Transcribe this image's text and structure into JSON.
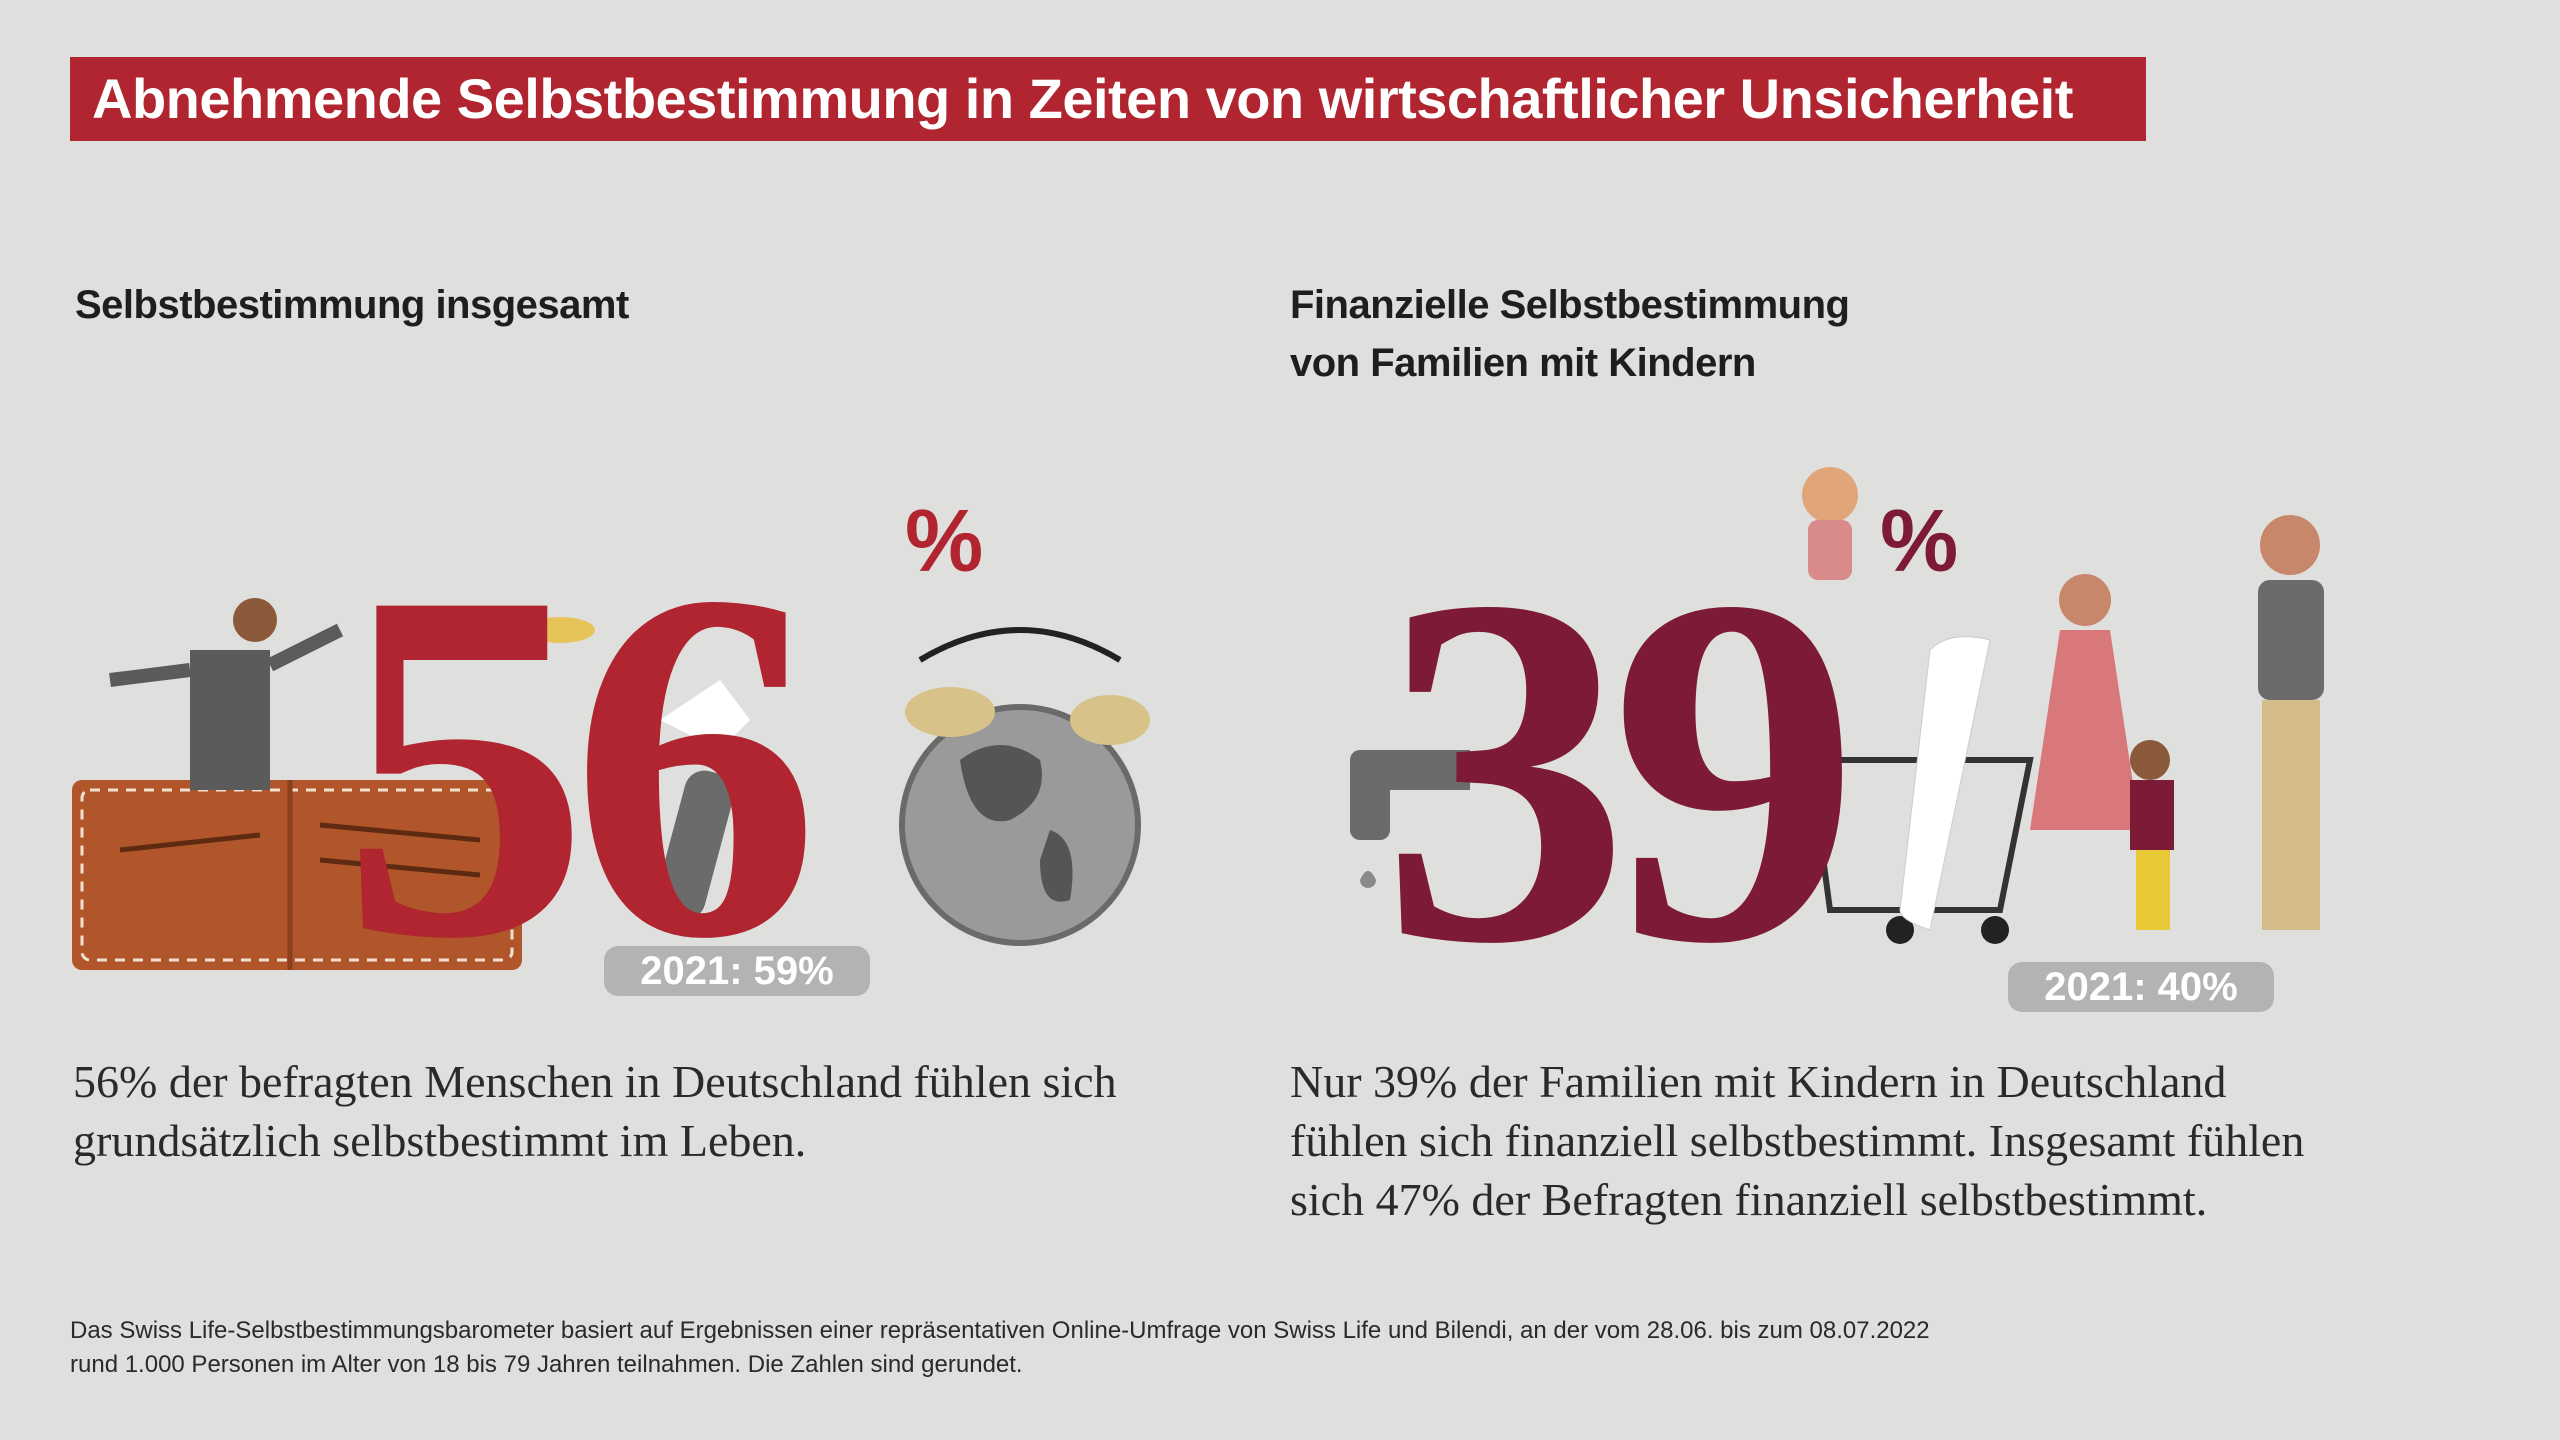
{
  "title": "Abnehmende Selbstbestimmung in Zeiten von wirtschaftlicher Unsicherheit",
  "left": {
    "heading": "Selbstbestimmung insgesamt",
    "big_number": "56",
    "percent_sign": "%",
    "previous": "2021: 59%",
    "body_line1": "56% der befragten Menschen in Deutschland fühlen sich",
    "body_line2": "grundsätzlich selbstbestimmt im Leben.",
    "color": "#b0252f"
  },
  "right": {
    "heading_line1": "Finanzielle Selbstbestimmung",
    "heading_line2": "von Familien mit Kindern",
    "big_number": "39",
    "percent_sign": "%",
    "previous": "2021: 40%",
    "body_line1": "Nur 39% der Familien mit Kindern in Deutschland",
    "body_line2": "fühlen sich finanziell selbstbestimmt. Insgesamt fühlen",
    "body_line3": "sich 47% der Befragten finanziell selbstbestimmt.",
    "color": "#7d1a35"
  },
  "footnote": {
    "line1": "Das Swiss Life-Selbstbestimmungsbarometer basiert auf Ergebnissen einer repräsentativen Online-Umfrage von Swiss Life und Bilendi, an der vom 28.06. bis zum 08.07.2022",
    "line2": "rund 1.000 Personen im Alter von 18 bis 79 Jahren teilnahmen. Die Zahlen sind gerundet."
  }
}
